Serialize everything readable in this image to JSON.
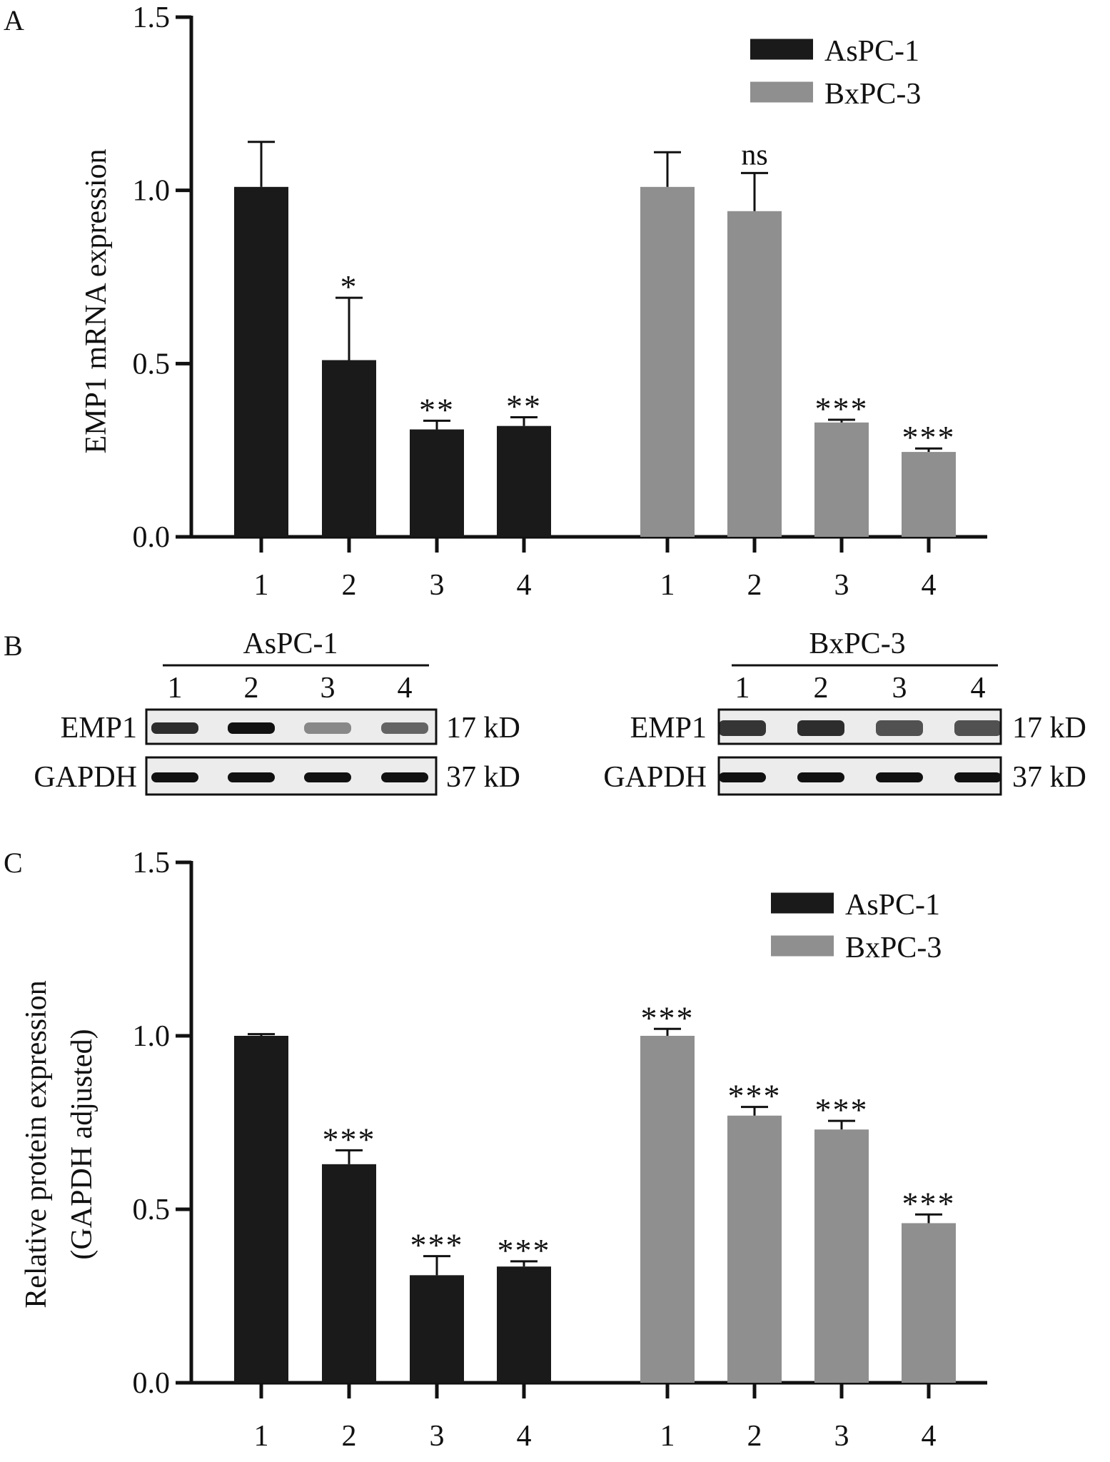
{
  "colors": {
    "ink": "#111111",
    "bar_a": "#1a1a1a",
    "bar_b": "#8f8f8f",
    "blot_bg": "#ececec"
  },
  "panels": {
    "a": "A",
    "b": "B",
    "c": "C"
  },
  "chart_data": [
    {
      "type": "bar",
      "panel": "A",
      "ylabel": "EMP1 mRNA expression",
      "ylim": [
        0,
        1.5
      ],
      "yticks": [
        "0.0",
        "0.5",
        "1.0",
        "1.5"
      ],
      "legend_position": "top-right",
      "groups": [
        {
          "name": "AsPC-1",
          "categories": [
            "1",
            "2",
            "3",
            "4"
          ],
          "values": [
            1.01,
            0.51,
            0.31,
            0.32
          ],
          "errors": [
            0.13,
            0.18,
            0.025,
            0.025
          ],
          "annotations": [
            "",
            "*",
            "**",
            "**"
          ]
        },
        {
          "name": "BxPC-3",
          "categories": [
            "1",
            "2",
            "3",
            "4"
          ],
          "values": [
            1.01,
            0.94,
            0.33,
            0.245
          ],
          "errors": [
            0.1,
            0.11,
            0.008,
            0.01
          ],
          "annotations": [
            "",
            "ns",
            "***",
            "***"
          ]
        }
      ]
    },
    {
      "type": "bar",
      "panel": "C",
      "ylabel": "Relative protein expression",
      "ylabel2": "(GAPDH adjusted)",
      "ylim": [
        0,
        1.5
      ],
      "yticks": [
        "0.0",
        "0.5",
        "1.0",
        "1.5"
      ],
      "legend_position": "top-right",
      "groups": [
        {
          "name": "AsPC-1",
          "categories": [
            "1",
            "2",
            "3",
            "4"
          ],
          "values": [
            1.0,
            0.63,
            0.31,
            0.335
          ],
          "errors": [
            0.005,
            0.04,
            0.055,
            0.015
          ],
          "annotations": [
            "",
            "***",
            "***",
            "***"
          ]
        },
        {
          "name": "BxPC-3",
          "categories": [
            "1",
            "2",
            "3",
            "4"
          ],
          "values": [
            1.0,
            0.77,
            0.73,
            0.46
          ],
          "errors": [
            0.02,
            0.025,
            0.025,
            0.025
          ],
          "annotations": [
            "***",
            "***",
            "***",
            "***"
          ]
        }
      ]
    }
  ],
  "blots": [
    {
      "title": "AsPC-1",
      "lanes": [
        "1",
        "2",
        "3",
        "4"
      ],
      "rows": [
        {
          "label": "EMP1",
          "size": "17 kD"
        },
        {
          "label": "GAPDH",
          "size": "37 kD"
        }
      ]
    },
    {
      "title": "BxPC-3",
      "lanes": [
        "1",
        "2",
        "3",
        "4"
      ],
      "rows": [
        {
          "label": "EMP1",
          "size": "17 kD"
        },
        {
          "label": "GAPDH",
          "size": "37 kD"
        }
      ]
    }
  ]
}
